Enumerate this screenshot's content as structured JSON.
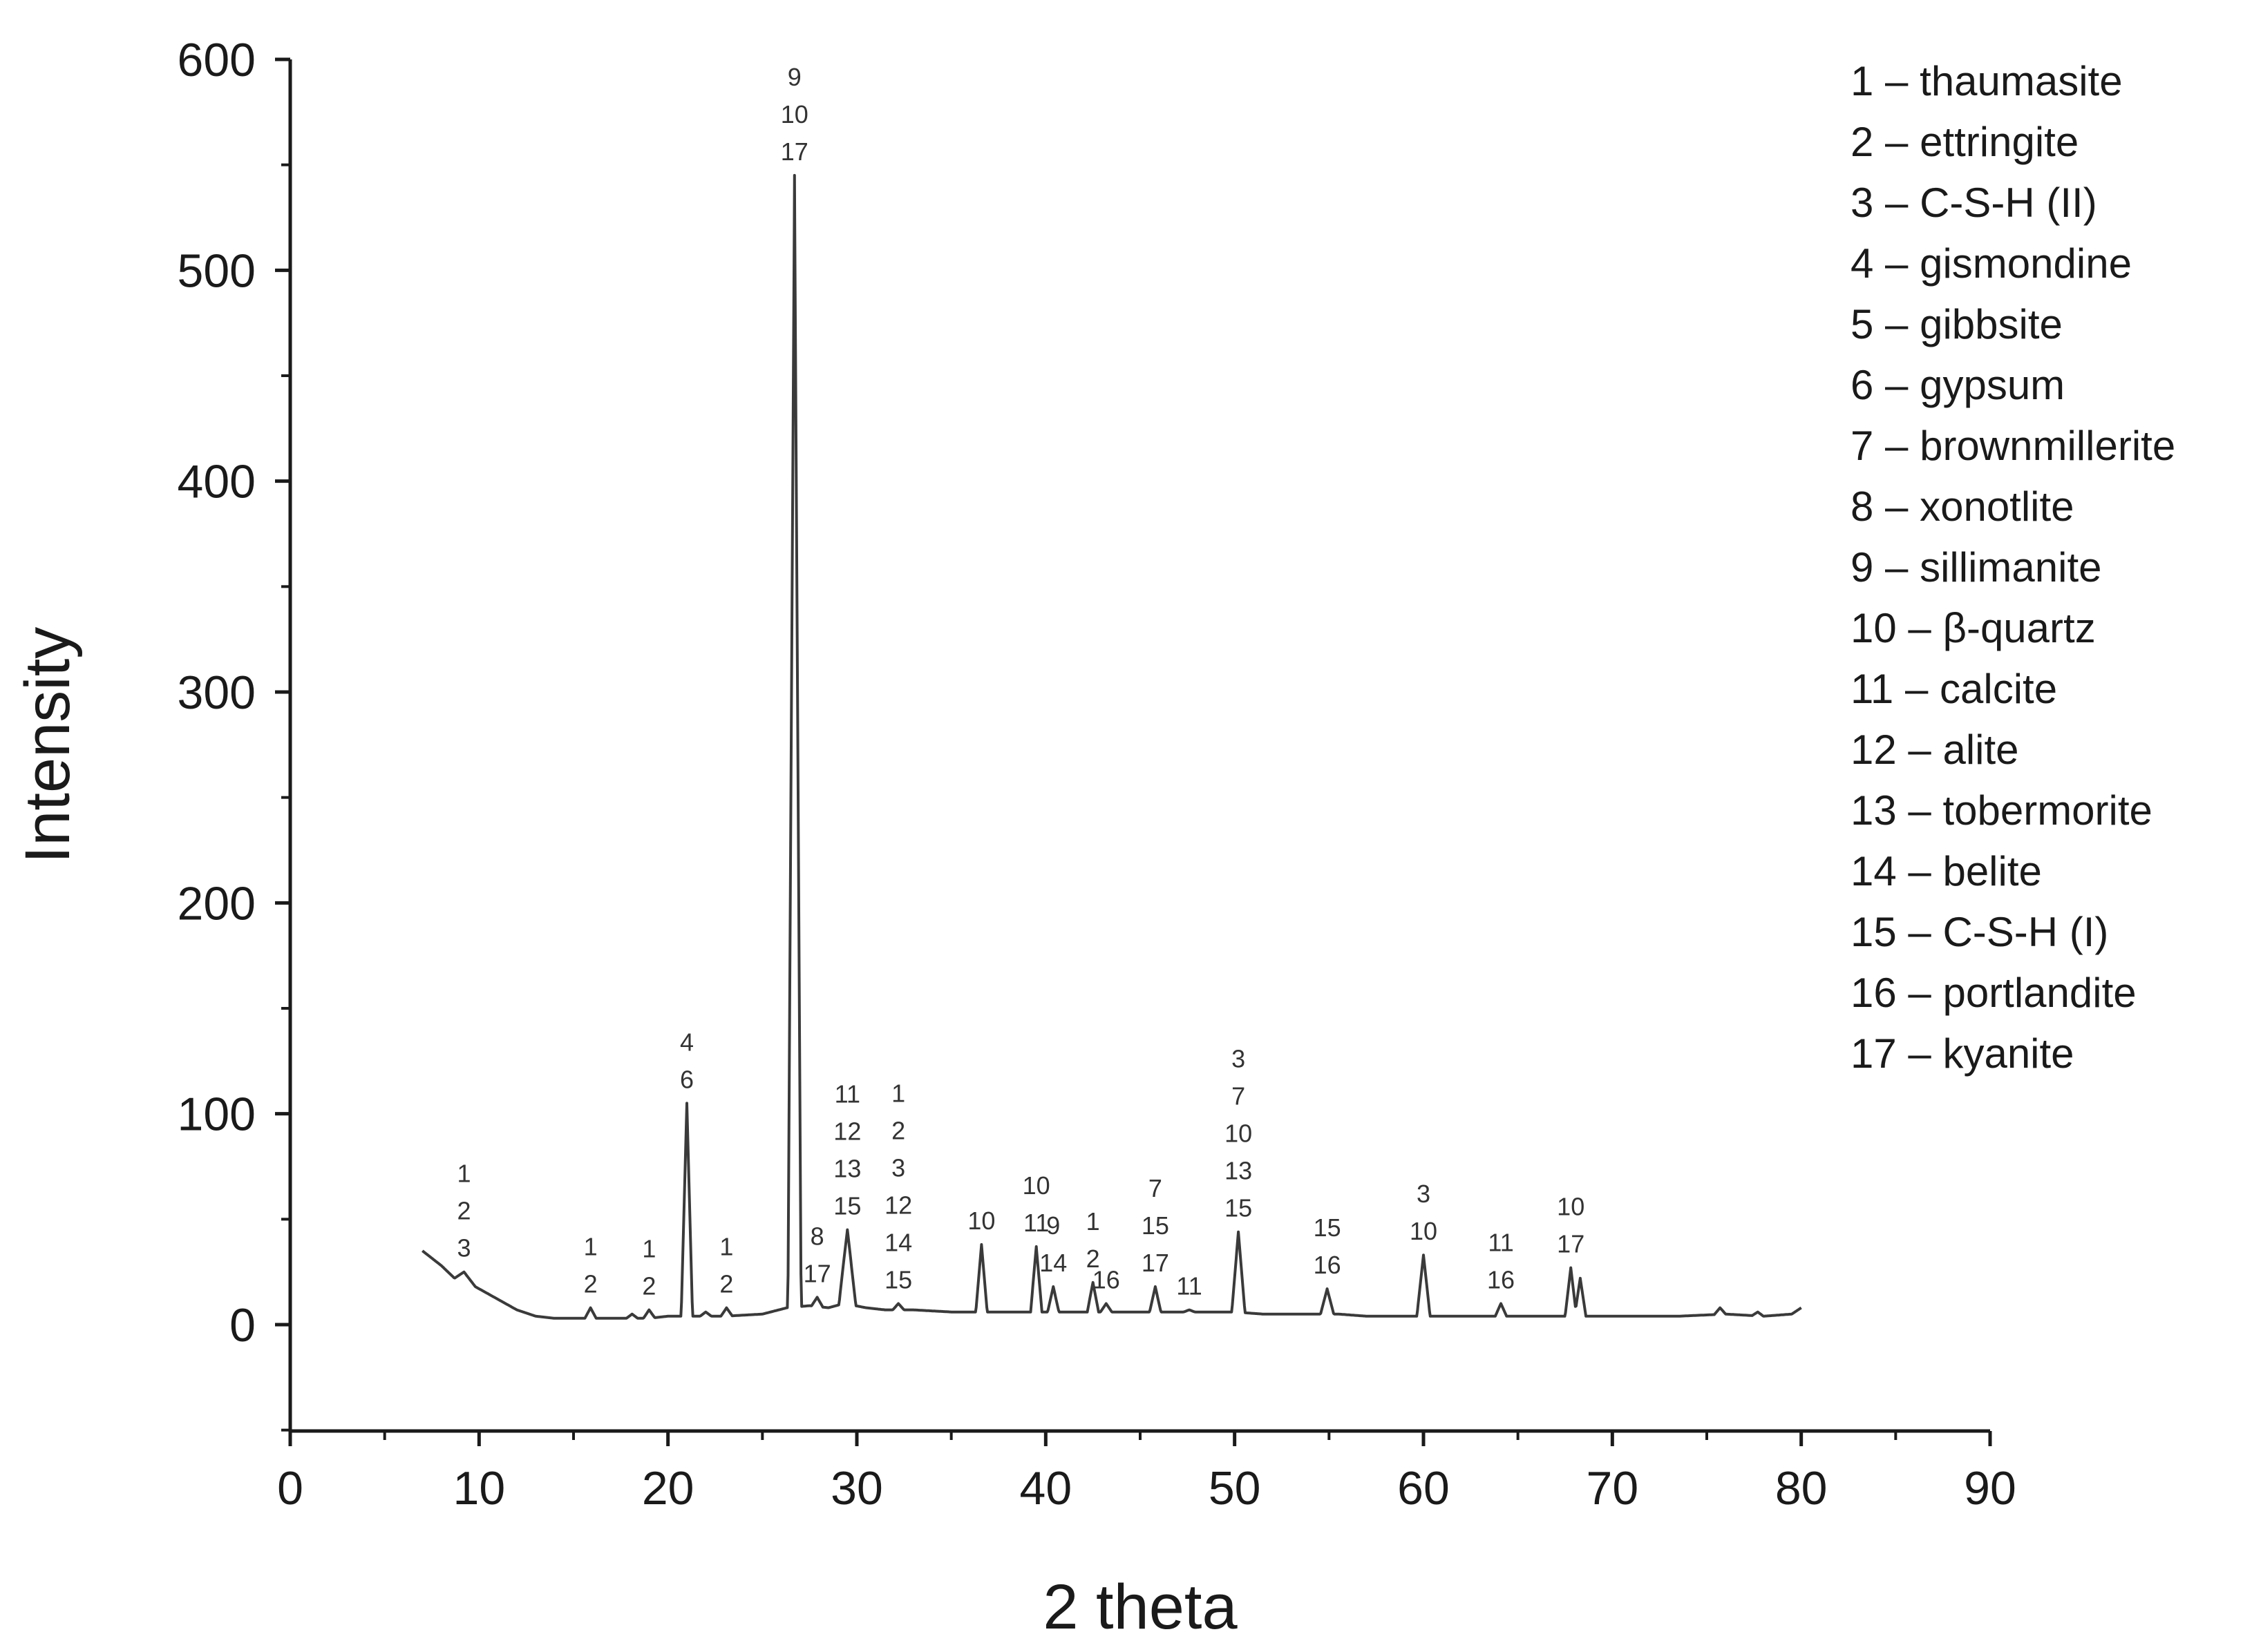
{
  "chart_data": {
    "type": "line",
    "xlabel": "2 theta",
    "ylabel": "Intensity",
    "xlim": [
      0,
      90
    ],
    "ylim": [
      -50,
      600
    ],
    "x_ticks": [
      0,
      10,
      20,
      30,
      40,
      50,
      60,
      70,
      80,
      90
    ],
    "y_ticks": [
      0,
      100,
      200,
      300,
      400,
      500,
      600
    ],
    "grid": false,
    "line_color": "#3a3a3a",
    "baseline": [
      [
        7,
        35
      ],
      [
        8,
        28
      ],
      [
        8.7,
        22
      ],
      [
        9.2,
        25
      ],
      [
        9.8,
        18
      ],
      [
        11,
        12
      ],
      [
        12,
        7
      ],
      [
        13,
        4
      ],
      [
        14,
        3
      ],
      [
        15,
        3
      ],
      [
        17,
        3
      ],
      [
        19,
        3
      ],
      [
        20,
        4
      ],
      [
        21.5,
        4
      ],
      [
        23,
        4
      ],
      [
        25,
        5
      ],
      [
        26.3,
        8
      ],
      [
        27.5,
        9
      ],
      [
        28.5,
        8
      ],
      [
        29.3,
        10
      ],
      [
        30.5,
        8
      ],
      [
        31.5,
        7
      ],
      [
        33,
        7
      ],
      [
        35,
        6
      ],
      [
        36.3,
        6
      ],
      [
        37.5,
        6
      ],
      [
        39,
        6
      ],
      [
        40.5,
        6
      ],
      [
        42,
        6
      ],
      [
        44,
        6
      ],
      [
        46.5,
        6
      ],
      [
        48,
        6
      ],
      [
        50,
        6
      ],
      [
        51.5,
        5
      ],
      [
        53,
        5
      ],
      [
        55.5,
        5
      ],
      [
        57,
        4
      ],
      [
        59.5,
        4
      ],
      [
        61,
        4
      ],
      [
        63,
        4
      ],
      [
        65,
        4
      ],
      [
        67,
        4
      ],
      [
        68.8,
        4
      ],
      [
        70,
        4
      ],
      [
        73.5,
        4
      ],
      [
        76,
        5
      ],
      [
        78,
        4
      ],
      [
        79.5,
        5
      ],
      [
        80,
        8
      ]
    ],
    "peaks": [
      {
        "x": 9.2,
        "y": 25,
        "w": 0.6,
        "labels": [
          "1",
          "2",
          "3"
        ]
      },
      {
        "x": 15.9,
        "y": 8,
        "w": 0.3,
        "labels": [
          "1",
          "2"
        ]
      },
      {
        "x": 18.1,
        "y": 5,
        "w": 0.3,
        "labels": []
      },
      {
        "x": 19.0,
        "y": 7,
        "w": 0.3,
        "labels": [
          "1",
          "2"
        ]
      },
      {
        "x": 21.0,
        "y": 105,
        "w": 0.3,
        "labels": [
          "4",
          "6"
        ]
      },
      {
        "x": 22.0,
        "y": 6,
        "w": 0.3,
        "labels": []
      },
      {
        "x": 23.1,
        "y": 8,
        "w": 0.3,
        "labels": [
          "1",
          "2"
        ]
      },
      {
        "x": 26.7,
        "y": 545,
        "w": 0.35,
        "labels": [
          "9",
          "10",
          "17"
        ]
      },
      {
        "x": 27.9,
        "y": 13,
        "w": 0.3,
        "labels": [
          "8",
          "17"
        ]
      },
      {
        "x": 29.5,
        "y": 45,
        "w": 0.45,
        "labels": [
          "11",
          "12",
          "13",
          "15"
        ]
      },
      {
        "x": 32.2,
        "y": 10,
        "w": 0.3,
        "labels": [
          "1",
          "2",
          "3",
          "12",
          "14",
          "15"
        ]
      },
      {
        "x": 36.6,
        "y": 38,
        "w": 0.3,
        "labels": [
          "10"
        ]
      },
      {
        "x": 39.5,
        "y": 37,
        "w": 0.3,
        "labels": [
          "10",
          "11"
        ]
      },
      {
        "x": 40.4,
        "y": 18,
        "w": 0.3,
        "labels": [
          "9",
          "14"
        ]
      },
      {
        "x": 42.5,
        "y": 20,
        "w": 0.3,
        "labels": [
          "1",
          "2"
        ]
      },
      {
        "x": 43.2,
        "y": 10,
        "w": 0.3,
        "labels": [
          "16"
        ]
      },
      {
        "x": 45.8,
        "y": 18,
        "w": 0.3,
        "labels": [
          "7",
          "15",
          "17"
        ]
      },
      {
        "x": 47.6,
        "y": 7,
        "w": 0.3,
        "labels": [
          "11"
        ]
      },
      {
        "x": 50.2,
        "y": 44,
        "w": 0.35,
        "labels": [
          "3",
          "7",
          "10",
          "13",
          "15"
        ]
      },
      {
        "x": 54.9,
        "y": 17,
        "w": 0.35,
        "labels": [
          "15",
          "16"
        ]
      },
      {
        "x": 60.0,
        "y": 33,
        "w": 0.35,
        "labels": [
          "3",
          "10"
        ]
      },
      {
        "x": 64.1,
        "y": 10,
        "w": 0.3,
        "labels": [
          "11",
          "16"
        ]
      },
      {
        "x": 67.8,
        "y": 27,
        "w": 0.3,
        "labels": [
          "10",
          "17"
        ]
      },
      {
        "x": 68.3,
        "y": 22,
        "w": 0.3,
        "labels": []
      },
      {
        "x": 75.7,
        "y": 8,
        "w": 0.3,
        "labels": []
      },
      {
        "x": 77.7,
        "y": 6,
        "w": 0.3,
        "labels": []
      }
    ],
    "legend": [
      "1 – thaumasite",
      "2 – ettringite",
      "3 – C-S-H (II)",
      "4 – gismondine",
      "5 – gibbsite",
      "6 – gypsum",
      "7 – brownmillerite",
      "8 – xonotlite",
      "9 – sillimanite",
      "10 – β-quartz",
      "11 – calcite",
      "12 – alite",
      "13 – tobermorite",
      "14 – belite",
      "15 – C-S-H (I)",
      "16 – portlandite",
      "17 – kyanite"
    ],
    "legend_placement": "right"
  }
}
